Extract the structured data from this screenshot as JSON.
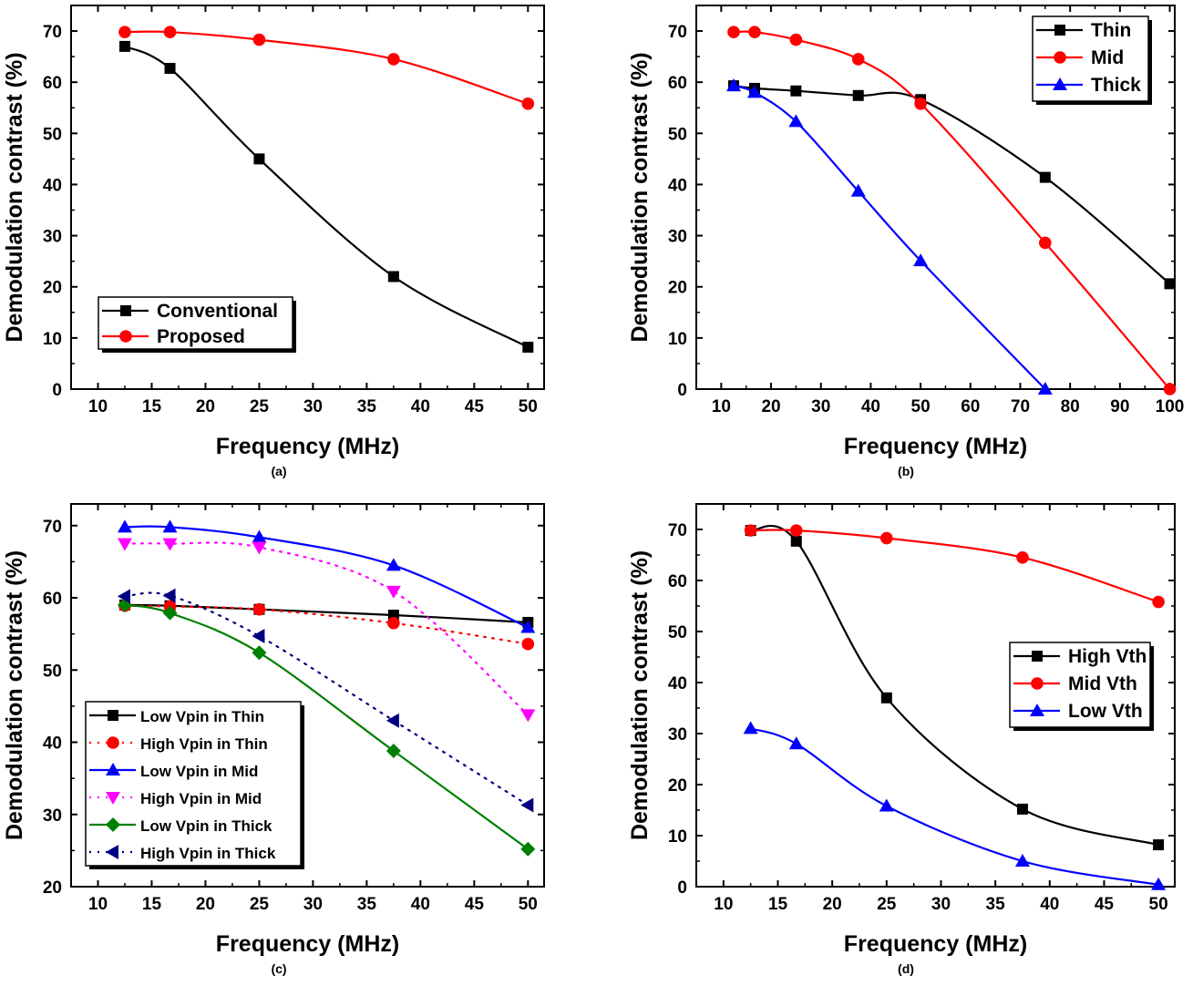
{
  "chart_data": [
    {
      "panel_label": "(a)",
      "type": "line",
      "xlabel": "Frequency (MHz)",
      "ylabel": "Demodulation contrast (%)",
      "xlim": [
        7.5,
        51.5
      ],
      "ylim": [
        0,
        75
      ],
      "xticks": [
        10,
        15,
        20,
        25,
        30,
        35,
        40,
        45,
        50
      ],
      "yticks": [
        0,
        10,
        20,
        30,
        40,
        50,
        60,
        70
      ],
      "legend_position": "bottom-left",
      "series": [
        {
          "name": "Conventional",
          "color": "#000000",
          "marker": "square",
          "dash": "solid",
          "x": [
            12.5,
            16.7,
            25,
            37.5,
            50
          ],
          "y": [
            67,
            62.7,
            45,
            22,
            8.2
          ]
        },
        {
          "name": "Proposed",
          "color": "#ff0000",
          "marker": "circle",
          "dash": "solid",
          "x": [
            12.5,
            16.7,
            25,
            37.5,
            50
          ],
          "y": [
            69.8,
            69.8,
            68.3,
            64.5,
            55.8
          ]
        }
      ]
    },
    {
      "panel_label": "(b)",
      "type": "line",
      "xlabel": "Frequency (MHz)",
      "ylabel": "Demodulation contrast (%)",
      "xlim": [
        5,
        101
      ],
      "ylim": [
        0,
        75
      ],
      "xticks": [
        10,
        20,
        30,
        40,
        50,
        60,
        70,
        80,
        90,
        100
      ],
      "yticks": [
        0,
        10,
        20,
        30,
        40,
        50,
        60,
        70
      ],
      "legend_position": "top-right",
      "series": [
        {
          "name": "Thin",
          "color": "#000000",
          "marker": "square",
          "dash": "solid",
          "x": [
            12.5,
            16.7,
            25,
            37.5,
            50,
            75,
            100
          ],
          "y": [
            59.3,
            58.8,
            58.3,
            57.4,
            56.6,
            41.4,
            20.6
          ]
        },
        {
          "name": "Mid",
          "color": "#ff0000",
          "marker": "circle",
          "dash": "solid",
          "x": [
            12.5,
            16.7,
            25,
            37.5,
            50,
            75,
            100
          ],
          "y": [
            69.8,
            69.8,
            68.3,
            64.5,
            55.8,
            28.6,
            0
          ]
        },
        {
          "name": "Thick",
          "color": "#0000ff",
          "marker": "triangle-up",
          "dash": "solid",
          "x": [
            12.5,
            16.7,
            25,
            37.5,
            50,
            75
          ],
          "y": [
            59.3,
            58,
            52.3,
            38.7,
            25.1,
            0
          ]
        }
      ]
    },
    {
      "panel_label": "(c)",
      "type": "line",
      "xlabel": "Frequency (MHz)",
      "ylabel": "Demodulation contrast (%)",
      "xlim": [
        7.5,
        51.5
      ],
      "ylim": [
        20,
        73
      ],
      "xticks": [
        10,
        15,
        20,
        25,
        30,
        35,
        40,
        45,
        50
      ],
      "yticks": [
        20,
        30,
        40,
        50,
        60,
        70
      ],
      "legend_position": "bottom-left",
      "series": [
        {
          "name": "Low Vpin in Thin",
          "color": "#000000",
          "marker": "square",
          "dash": "solid",
          "x": [
            12.5,
            16.7,
            25,
            37.5,
            50
          ],
          "y": [
            59,
            58.9,
            58.4,
            57.6,
            56.6
          ]
        },
        {
          "name": "High Vpin in Thin",
          "color": "#ff0000",
          "marker": "circle",
          "dash": "dot",
          "x": [
            12.5,
            16.7,
            25,
            37.5,
            50
          ],
          "y": [
            58.9,
            58.8,
            58.4,
            56.5,
            53.6
          ]
        },
        {
          "name": "Low Vpin in Mid",
          "color": "#0000ff",
          "marker": "triangle-up",
          "dash": "solid",
          "x": [
            12.5,
            16.7,
            25,
            37.5,
            50
          ],
          "y": [
            69.8,
            69.8,
            68.4,
            64.5,
            55.9
          ]
        },
        {
          "name": "High Vpin in Mid",
          "color": "#ff00ff",
          "marker": "triangle-down",
          "dash": "dot",
          "x": [
            12.5,
            16.7,
            25,
            37.5,
            50
          ],
          "y": [
            67.5,
            67.5,
            67,
            60.9,
            43.8
          ]
        },
        {
          "name": "Low Vpin in Thick",
          "color": "#008000",
          "marker": "diamond",
          "dash": "solid",
          "x": [
            12.5,
            16.7,
            25,
            37.5,
            50
          ],
          "y": [
            59,
            57.9,
            52.4,
            38.8,
            25.2
          ]
        },
        {
          "name": "High Vpin in Thick",
          "color": "#000080",
          "marker": "triangle-left",
          "dash": "dot",
          "x": [
            12.5,
            16.7,
            25,
            37.5,
            50
          ],
          "y": [
            60.2,
            60.3,
            54.7,
            43,
            31.3
          ]
        }
      ]
    },
    {
      "panel_label": "(d)",
      "type": "line",
      "xlabel": "Frequency (MHz)",
      "ylabel": "Demodulation contrast (%)",
      "xlim": [
        7.5,
        51.5
      ],
      "ylim": [
        0,
        75
      ],
      "xticks": [
        10,
        15,
        20,
        25,
        30,
        35,
        40,
        45,
        50
      ],
      "yticks": [
        0,
        10,
        20,
        30,
        40,
        50,
        60,
        70
      ],
      "legend_position": "center-right",
      "series": [
        {
          "name": "High Vth",
          "color": "#000000",
          "marker": "square",
          "dash": "solid",
          "x": [
            12.5,
            16.7,
            25,
            37.5,
            50
          ],
          "y": [
            69.8,
            67.7,
            37,
            15.2,
            8.2
          ]
        },
        {
          "name": "Mid Vth",
          "color": "#ff0000",
          "marker": "circle",
          "dash": "solid",
          "x": [
            12.5,
            16.7,
            25,
            37.5,
            50
          ],
          "y": [
            69.8,
            69.8,
            68.3,
            64.5,
            55.8
          ]
        },
        {
          "name": "Low Vth",
          "color": "#0000ff",
          "marker": "triangle-up",
          "dash": "solid",
          "x": [
            12.5,
            16.7,
            25,
            37.5,
            50
          ],
          "y": [
            31,
            28,
            15.8,
            5,
            0.4
          ]
        }
      ]
    }
  ]
}
